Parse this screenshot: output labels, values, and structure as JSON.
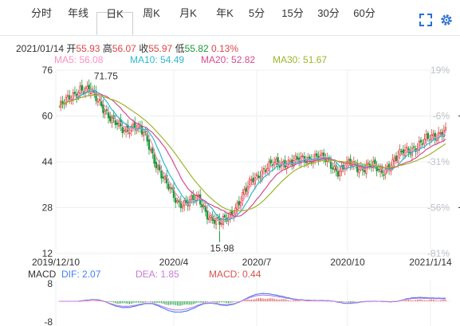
{
  "tabs": [
    {
      "label": "分时",
      "active": false
    },
    {
      "label": "年线",
      "active": false
    },
    {
      "label": "日K",
      "active": true
    },
    {
      "label": "周K",
      "active": false
    },
    {
      "label": "月K",
      "active": false
    },
    {
      "label": "年K",
      "active": false
    },
    {
      "label": "5分",
      "active": false
    },
    {
      "label": "15分",
      "active": false
    },
    {
      "label": "30分",
      "active": false
    },
    {
      "label": "60分",
      "active": false
    }
  ],
  "toolbar": {
    "fullscreen_icon": "fullscreen-icon",
    "settings_icon": "gear-icon"
  },
  "quote": {
    "date": "2021/01/14",
    "open_label": "开",
    "open": "55.93",
    "high_label": "高",
    "high": "56.07",
    "close_label": "收",
    "close": "55.97",
    "low_label": "低",
    "low": "55.82",
    "change": "0.13%"
  },
  "ma": {
    "ma5_label": "MA5:",
    "ma5": "56.08",
    "ma10_label": "MA10:",
    "ma10": "54.49",
    "ma20_label": "MA20:",
    "ma20": "52.82",
    "ma30_label": "MA30:",
    "ma30": "51.67"
  },
  "colors": {
    "up": "#e04545",
    "down": "#1a9a3a",
    "ma5": "#ff8fc0",
    "ma10": "#2fb8d6",
    "ma20": "#d94b91",
    "ma30": "#9fb52a",
    "dif": "#3f7fff",
    "dea": "#c77bd9",
    "macd": "#d9534f"
  },
  "price_axis": {
    "ticks": [
      "76",
      "60",
      "44",
      "28",
      "12"
    ],
    "range": [
      12,
      76
    ]
  },
  "pct_axis": {
    "ticks": [
      "19%",
      "-6%",
      "-31%",
      "-56%",
      "-81%"
    ]
  },
  "date_axis": {
    "ticks": [
      "2019/12/10",
      "2020/4",
      "2020/7",
      "2020/10",
      "2021/1/14"
    ]
  },
  "annotations": {
    "high": "71.75",
    "low": "15.98"
  },
  "macd": {
    "label": "MACD",
    "dif_label": "DIF:",
    "dif": "2.07",
    "dea_label": "DEA:",
    "dea": "1.85",
    "macd_label": "MACD:",
    "macd": "0.44",
    "ticks": [
      "8",
      "-8"
    ]
  },
  "chart_data": {
    "type": "candlestick",
    "close_series": [
      {
        "date": "2019/12/10",
        "value": 63
      },
      {
        "date": "2019/12/25",
        "value": 66
      },
      {
        "date": "2020/1/6",
        "value": 70
      },
      {
        "date": "2020/1/13",
        "value": 68
      },
      {
        "date": "2020/1/23",
        "value": 64
      },
      {
        "date": "2020/2/5",
        "value": 58
      },
      {
        "date": "2020/2/17",
        "value": 55
      },
      {
        "date": "2020/2/26",
        "value": 57
      },
      {
        "date": "2020/3/5",
        "value": 53
      },
      {
        "date": "2020/3/12",
        "value": 44
      },
      {
        "date": "2020/3/19",
        "value": 36
      },
      {
        "date": "2020/3/26",
        "value": 30
      },
      {
        "date": "2020/4/3",
        "value": 30
      },
      {
        "date": "2020/4/14",
        "value": 31
      },
      {
        "date": "2020/4/21",
        "value": 25
      },
      {
        "date": "2020/4/28",
        "value": 22
      },
      {
        "date": "2020/5/12",
        "value": 26
      },
      {
        "date": "2020/5/26",
        "value": 31
      },
      {
        "date": "2020/6/9",
        "value": 38
      },
      {
        "date": "2020/6/23",
        "value": 41
      },
      {
        "date": "2020/7/7",
        "value": 43
      },
      {
        "date": "2020/7/21",
        "value": 44
      },
      {
        "date": "2020/8/4",
        "value": 44
      },
      {
        "date": "2020/8/18",
        "value": 45
      },
      {
        "date": "2020/9/1",
        "value": 46
      },
      {
        "date": "2020/9/10",
        "value": 44
      },
      {
        "date": "2020/9/22",
        "value": 41
      },
      {
        "date": "2020/10/9",
        "value": 43
      },
      {
        "date": "2020/10/20",
        "value": 42
      },
      {
        "date": "2020/11/3",
        "value": 43
      },
      {
        "date": "2020/11/13",
        "value": 40
      },
      {
        "date": "2020/11/24",
        "value": 44
      },
      {
        "date": "2020/12/4",
        "value": 47
      },
      {
        "date": "2020/12/15",
        "value": 49
      },
      {
        "date": "2020/12/25",
        "value": 51
      },
      {
        "date": "2021/1/6",
        "value": 53
      },
      {
        "date": "2021/1/14",
        "value": 55.97
      }
    ],
    "extremes": [
      {
        "date": "2020/1/13",
        "value": 71.75,
        "label": "71.75"
      },
      {
        "date": "2020/4/28",
        "value": 15.98,
        "label": "15.98"
      }
    ],
    "ylim": [
      12,
      76
    ]
  }
}
